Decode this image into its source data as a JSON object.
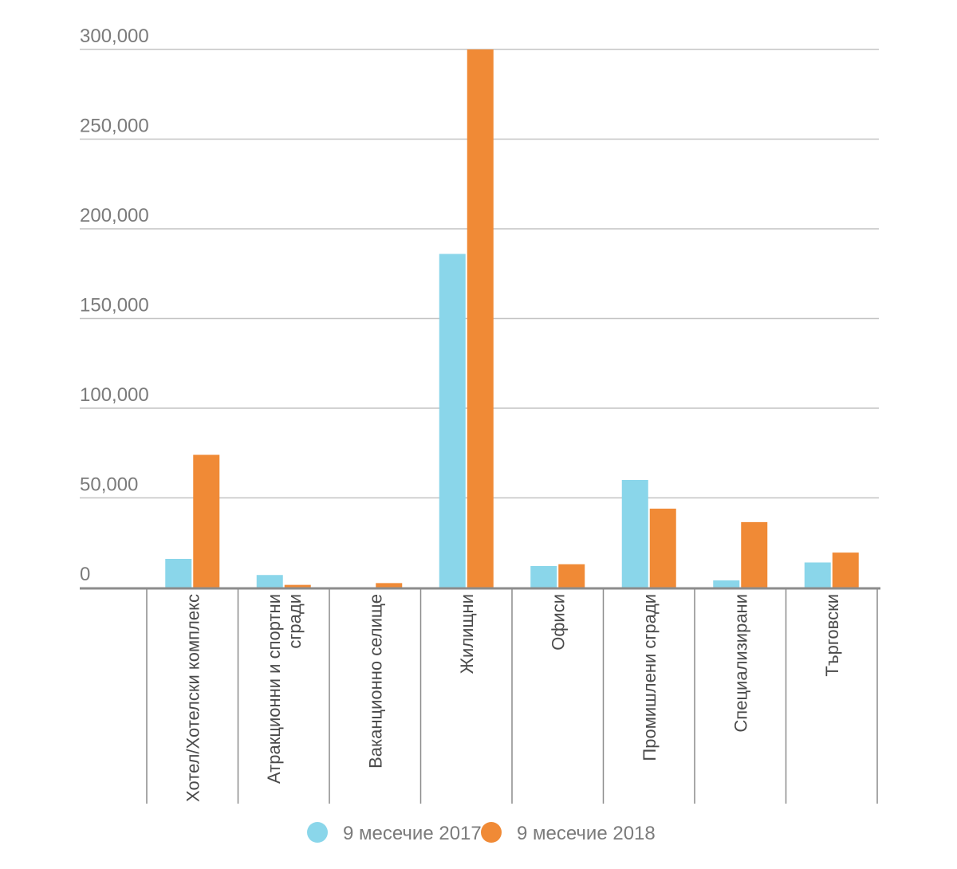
{
  "colors": {
    "series_2017": "#8ad6ea",
    "series_2018": "#f08a36",
    "grid": "#c4c4c4",
    "axis": "#8c8c8c",
    "tick_text": "#7b7b7b",
    "category_text": "#4a4a4a"
  },
  "chart_data": {
    "type": "bar",
    "title": "",
    "xlabel": "",
    "ylabel": "",
    "ylim": [
      0,
      300000
    ],
    "yticks": [
      0,
      50000,
      100000,
      150000,
      200000,
      250000,
      300000
    ],
    "ytick_labels": [
      "0",
      "50,000",
      "100,000",
      "150,000",
      "200,000",
      "250,000",
      "300,000"
    ],
    "grid": true,
    "legend_position": "bottom",
    "categories": [
      [
        "Хотел/Хотелски комплекс"
      ],
      [
        "Атракционни и спортни",
        "сгради"
      ],
      [
        "Ваканционно селище"
      ],
      [
        "Жилищни"
      ],
      [
        "Офиси"
      ],
      [
        "Промишлени сгради"
      ],
      [
        "Специализирани"
      ],
      [
        "Търговски"
      ]
    ],
    "series": [
      {
        "name": "9 месечие 2017",
        "color": "#8ad6ea",
        "values": [
          16000,
          7000,
          0,
          186000,
          12000,
          60000,
          4000,
          14000
        ]
      },
      {
        "name": "9 месечие 2018",
        "color": "#f08a36",
        "values": [
          74000,
          1500,
          2500,
          300000,
          13000,
          44000,
          36500,
          19500
        ]
      }
    ]
  }
}
